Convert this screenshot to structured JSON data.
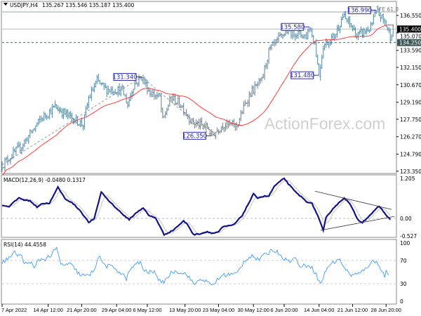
{
  "header": {
    "symbol": "USDJPY,H4",
    "ohlc": "135.267 135.546 135.187 135.400"
  },
  "watermark": "ActionForex.com",
  "colors": {
    "candle": "#56829c",
    "ma": "#ff3b3b",
    "macd": "#14148a",
    "signal": "#c4c4c4",
    "rsi": "#3d9cff",
    "label": "#2a2ab8"
  },
  "price_axis": [
    "136.550",
    "135.070",
    "133.590",
    "132.150",
    "130.670",
    "129.190",
    "127.750",
    "126.270",
    "124.790",
    "123.350"
  ],
  "price_tags": {
    "current": "135.400",
    "level": "134.250"
  },
  "annotations": [
    {
      "text": "131.340",
      "bar": 100,
      "price": 131.34
    },
    {
      "text": "126.350",
      "bar": 150,
      "price": 126.35
    },
    {
      "text": "135.580",
      "bar": 220,
      "price": 135.58
    },
    {
      "text": "131.480",
      "bar": 227,
      "price": 131.48
    },
    {
      "text": "136.990",
      "bar": 268,
      "price": 136.99
    }
  ],
  "fe_label": "FE 61.8",
  "macd": {
    "label": "MACD(12,26,9) -0.0480 0.1317",
    "axis": [
      "1.205",
      "0.00",
      "-0.527"
    ]
  },
  "rsi": {
    "label": "RSI(14) 44.4558",
    "axis": [
      "100",
      "70",
      "30",
      "0"
    ]
  },
  "time_axis": [
    {
      "text": "7 Apr 2022",
      "bar": 0
    },
    {
      "text": "14 Apr 12:00",
      "bar": 33
    },
    {
      "text": "21 Apr 20:00",
      "bar": 57
    },
    {
      "text": "29 Apr 04:00",
      "bar": 82
    },
    {
      "text": "6 May 12:00",
      "bar": 104
    },
    {
      "text": "13 May 20:00",
      "bar": 131
    },
    {
      "text": "23 May 04:00",
      "bar": 155
    },
    {
      "text": "30 May 12:00",
      "bar": 180
    },
    {
      "text": "6 Jun 20:00",
      "bar": 202
    },
    {
      "text": "14 Jun 04:00",
      "bar": 227
    },
    {
      "text": "21 Jun 12:00",
      "bar": 251
    },
    {
      "text": "28 Jun 20:00",
      "bar": 275
    }
  ],
  "chart_data": [
    {
      "type": "line",
      "title": "USDJPY,H4 price (candles) with moving average",
      "ylim": [
        123.35,
        136.55
      ],
      "bars": 281,
      "levels": {
        "current": 135.4,
        "support": 134.25,
        "fe_61_8": 136.85
      },
      "price_path": [
        [
          0,
          123.9
        ],
        [
          14,
          125.5
        ],
        [
          28,
          127.8
        ],
        [
          38,
          128.8
        ],
        [
          48,
          128.0
        ],
        [
          58,
          127.3
        ],
        [
          62,
          129.5
        ],
        [
          68,
          131.0
        ],
        [
          74,
          130.3
        ],
        [
          86,
          130.2
        ],
        [
          90,
          129.0
        ],
        [
          94,
          130.6
        ],
        [
          100,
          131.34
        ],
        [
          106,
          130.0
        ],
        [
          113,
          129.6
        ],
        [
          115,
          127.6
        ],
        [
          121,
          129.6
        ],
        [
          128,
          129.0
        ],
        [
          136,
          127.5
        ],
        [
          148,
          127.0
        ],
        [
          150,
          126.35
        ],
        [
          158,
          127.3
        ],
        [
          168,
          127.2
        ],
        [
          174,
          129.0
        ],
        [
          178,
          130.0
        ],
        [
          186,
          131.0
        ],
        [
          191,
          133.5
        ],
        [
          198,
          134.5
        ],
        [
          204,
          135.3
        ],
        [
          218,
          134.8
        ],
        [
          220,
          135.58
        ],
        [
          224,
          134.2
        ],
        [
          227,
          131.48
        ],
        [
          230,
          134.0
        ],
        [
          238,
          134.8
        ],
        [
          244,
          136.5
        ],
        [
          251,
          135.5
        ],
        [
          254,
          134.8
        ],
        [
          264,
          135.5
        ],
        [
          268,
          136.99
        ],
        [
          274,
          136.0
        ],
        [
          278,
          134.8
        ],
        [
          280,
          135.4
        ]
      ],
      "trendlines": [
        [
          [
            0,
            123.9
          ],
          [
            100,
            131.34
          ],
          [
            150,
            126.35
          ]
        ]
      ]
    },
    {
      "type": "line",
      "title": "MACD(12,26,9)",
      "ylim": [
        -0.527,
        1.205
      ],
      "macd_path": [
        [
          0,
          0.39
        ],
        [
          5,
          0.36
        ],
        [
          12,
          0.62
        ],
        [
          16,
          0.55
        ],
        [
          20,
          0.53
        ],
        [
          25,
          0.34
        ],
        [
          28,
          0.44
        ],
        [
          34,
          0.46
        ],
        [
          40,
          0.94
        ],
        [
          45,
          0.6
        ],
        [
          51,
          0.44
        ],
        [
          56,
          0.23
        ],
        [
          62,
          -0.12
        ],
        [
          66,
          -0.01
        ],
        [
          71,
          0.8
        ],
        [
          76,
          0.55
        ],
        [
          81,
          0.34
        ],
        [
          89,
          0.02
        ],
        [
          91,
          -0.03
        ],
        [
          97,
          0.2
        ],
        [
          101,
          0.32
        ],
        [
          105,
          0.09
        ],
        [
          110,
          0.01
        ],
        [
          116,
          -0.49
        ],
        [
          122,
          -0.37
        ],
        [
          130,
          -0.08
        ],
        [
          133,
          -0.19
        ],
        [
          137,
          -0.49
        ],
        [
          141,
          -0.47
        ],
        [
          147,
          -0.4
        ],
        [
          151,
          -0.45
        ],
        [
          155,
          -0.4
        ],
        [
          158,
          -0.26
        ],
        [
          166,
          -0.19
        ],
        [
          172,
          0.09
        ],
        [
          180,
          0.73
        ],
        [
          183,
          0.62
        ],
        [
          188,
          0.67
        ],
        [
          191,
          0.67
        ],
        [
          195,
          0.97
        ],
        [
          202,
          1.21
        ],
        [
          205,
          1.04
        ],
        [
          210,
          0.8
        ],
        [
          218,
          0.51
        ],
        [
          222,
          0.44
        ],
        [
          226,
          0.09
        ],
        [
          230,
          -0.37
        ],
        [
          232,
          0.02
        ],
        [
          237,
          0.3
        ],
        [
          245,
          0.62
        ],
        [
          249,
          0.44
        ],
        [
          255,
          -0.05
        ],
        [
          258,
          -0.12
        ],
        [
          266,
          0.2
        ],
        [
          270,
          0.37
        ],
        [
          274,
          0.16
        ],
        [
          278,
          -0.05
        ]
      ],
      "trendlines": [
        [
          [
            224,
            0.82
          ],
          [
            279,
            0.27
          ]
        ],
        [
          [
            228,
            -0.36
          ],
          [
            281,
            0.06
          ]
        ]
      ]
    },
    {
      "type": "line",
      "title": "RSI(14)",
      "ylim": [
        0,
        100
      ],
      "levels": [
        70,
        30
      ],
      "rsi_path": [
        [
          0,
          67
        ],
        [
          4,
          73
        ],
        [
          9,
          83
        ],
        [
          14,
          77
        ],
        [
          16,
          63
        ],
        [
          20,
          69
        ],
        [
          23,
          55
        ],
        [
          26,
          71
        ],
        [
          31,
          73
        ],
        [
          35,
          79
        ],
        [
          39,
          91
        ],
        [
          42,
          63
        ],
        [
          49,
          63
        ],
        [
          56,
          45
        ],
        [
          62,
          43
        ],
        [
          66,
          55
        ],
        [
          69,
          77
        ],
        [
          74,
          61
        ],
        [
          81,
          57
        ],
        [
          89,
          39
        ],
        [
          93,
          59
        ],
        [
          99,
          67
        ],
        [
          102,
          51
        ],
        [
          110,
          49
        ],
        [
          114,
          29
        ],
        [
          122,
          51
        ],
        [
          127,
          51
        ],
        [
          133,
          45
        ],
        [
          137,
          29
        ],
        [
          143,
          39
        ],
        [
          150,
          27
        ],
        [
          158,
          45
        ],
        [
          168,
          47
        ],
        [
          174,
          71
        ],
        [
          179,
          79
        ],
        [
          183,
          71
        ],
        [
          187,
          77
        ],
        [
          194,
          89
        ],
        [
          199,
          81
        ],
        [
          204,
          69
        ],
        [
          210,
          73
        ],
        [
          214,
          59
        ],
        [
          220,
          63
        ],
        [
          224,
          51
        ],
        [
          228,
          29
        ],
        [
          233,
          59
        ],
        [
          241,
          73
        ],
        [
          249,
          45
        ],
        [
          256,
          47
        ],
        [
          260,
          55
        ],
        [
          264,
          67
        ],
        [
          269,
          67
        ],
        [
          274,
          43
        ],
        [
          275,
          51
        ],
        [
          277,
          44
        ]
      ]
    }
  ]
}
